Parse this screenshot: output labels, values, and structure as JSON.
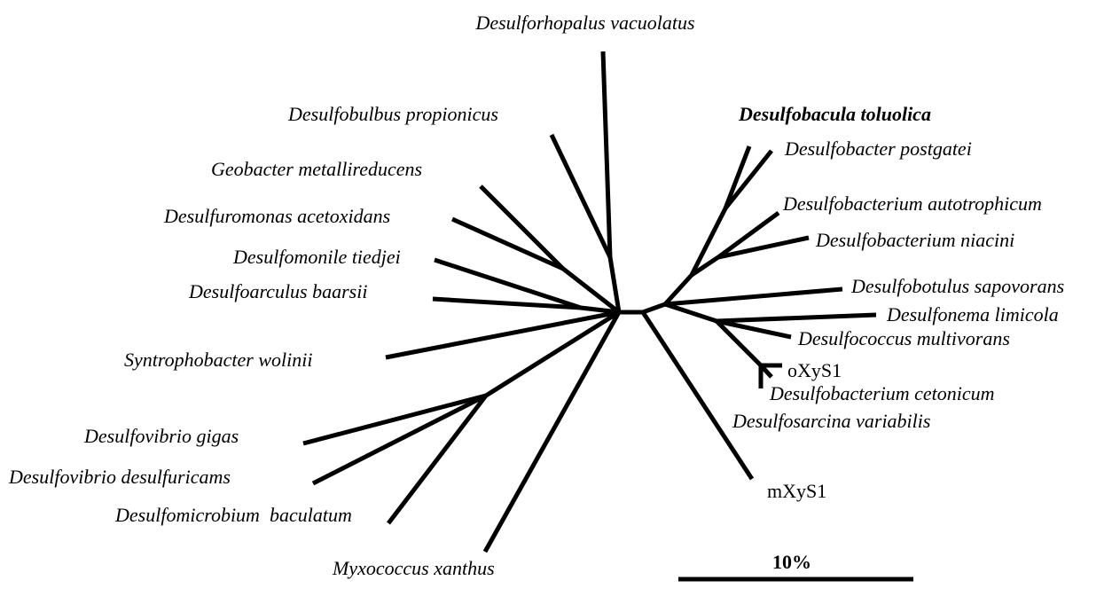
{
  "tree": {
    "leaves": [
      "Desulforhopalus vacuolatus",
      "Desulfobulbus propionicus",
      "Geobacter metallireducens",
      "Desulfuromonas acetoxidans",
      "Desulfomonile tiedjei",
      "Desulfoarculus baarsii",
      "Syntrophobacter wolinii",
      "Desulfovibrio gigas",
      "Desulfovibrio desulfuricams",
      "Desulfomicrobium  baculatum",
      "Myxococcus xanthus",
      "Desulfobacula toluolica",
      "Desulfobacter postgatei",
      "Desulfobacterium autotrophicum",
      "Desulfobacterium niacini",
      "Desulfobotulus sapovorans",
      "Desulfonema limicola",
      "Desulfococcus multivorans",
      "oXyS1",
      "Desulfobacterium cetonicum",
      "Desulfosarcina variabilis",
      "mXyS1"
    ],
    "scale_label": "10%"
  }
}
